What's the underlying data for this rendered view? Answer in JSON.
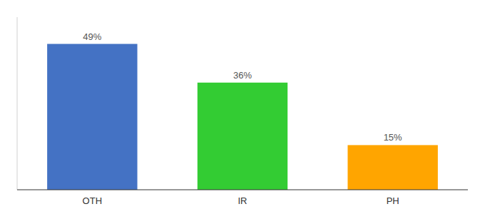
{
  "chart_data": {
    "type": "bar",
    "categories": [
      "OTH",
      "IR",
      "PH"
    ],
    "values": [
      49,
      36,
      15
    ],
    "value_labels": [
      "49%",
      "36%",
      "15%"
    ],
    "colors": [
      "#4472C4",
      "#33CC33",
      "#FFA500"
    ],
    "ylim": [
      0,
      58
    ],
    "data_labels": true,
    "tick_labels": "x"
  }
}
